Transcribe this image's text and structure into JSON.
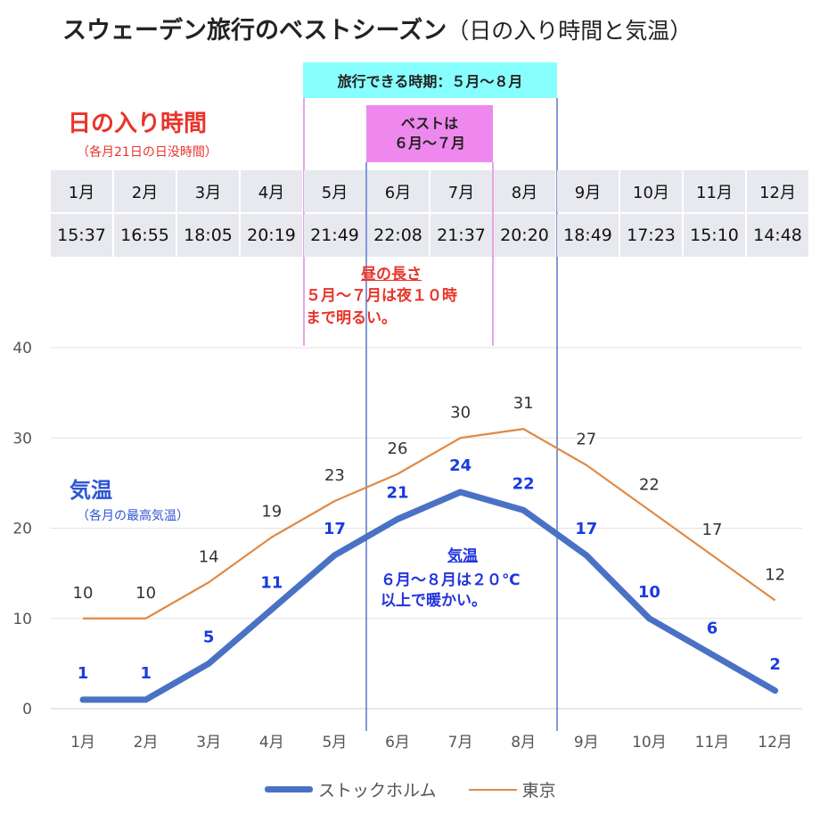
{
  "header": {
    "title_main": "スウェーデン旅行のベストシーズン",
    "title_sub": "（日の入り時間と気温）"
  },
  "boxes": {
    "travel_period": "旅行できる時期：５月～８月",
    "best_line1": "ベストは",
    "best_line2": "６月～７月"
  },
  "sunset": {
    "title": "日の入り時間",
    "note": "（各月21日の日没時間）",
    "months": [
      "1月",
      "2月",
      "3月",
      "4月",
      "5月",
      "6月",
      "7月",
      "8月",
      "9月",
      "10月",
      "11月",
      "12月"
    ],
    "times": [
      "15:37",
      "16:55",
      "18:05",
      "20:19",
      "21:49",
      "22:08",
      "21:37",
      "20:20",
      "18:49",
      "17:23",
      "15:10",
      "14:48"
    ]
  },
  "daylight_annotation": {
    "title": "昼の長さ",
    "text": "５月～７月は夜１０時\nまで明るい。"
  },
  "temperature": {
    "title": "気温",
    "note": "（各月の最高気温）",
    "annotation_title": "気温",
    "annotation_text": "６月～８月は２０℃\n以上で暖かい。"
  },
  "legend": {
    "stockholm": "ストックホルム",
    "tokyo": "東京"
  },
  "colors": {
    "stockholm": "#4a72c4",
    "tokyo": "#e08a45",
    "stockholm_labels": "#1a3be0",
    "tokyo_labels": "#333333",
    "guide_lines": "#3355bb",
    "travel_box": "#88ffff",
    "best_box": "#ee88ee",
    "accent_red": "#e8342a"
  },
  "chart_data": {
    "type": "line",
    "categories": [
      "1月",
      "2月",
      "3月",
      "4月",
      "5月",
      "6月",
      "7月",
      "8月",
      "9月",
      "10月",
      "11月",
      "12月"
    ],
    "series": [
      {
        "name": "ストックホルム",
        "values": [
          1,
          1,
          5,
          11,
          17,
          21,
          24,
          22,
          17,
          10,
          6,
          2
        ]
      },
      {
        "name": "東京",
        "values": [
          10,
          10,
          14,
          19,
          23,
          26,
          30,
          31,
          27,
          22,
          17,
          12
        ]
      }
    ],
    "yticks": [
      0,
      10,
      20,
      30,
      40
    ],
    "ylim": [
      0,
      40
    ],
    "grid": true,
    "legend_position": "bottom"
  }
}
